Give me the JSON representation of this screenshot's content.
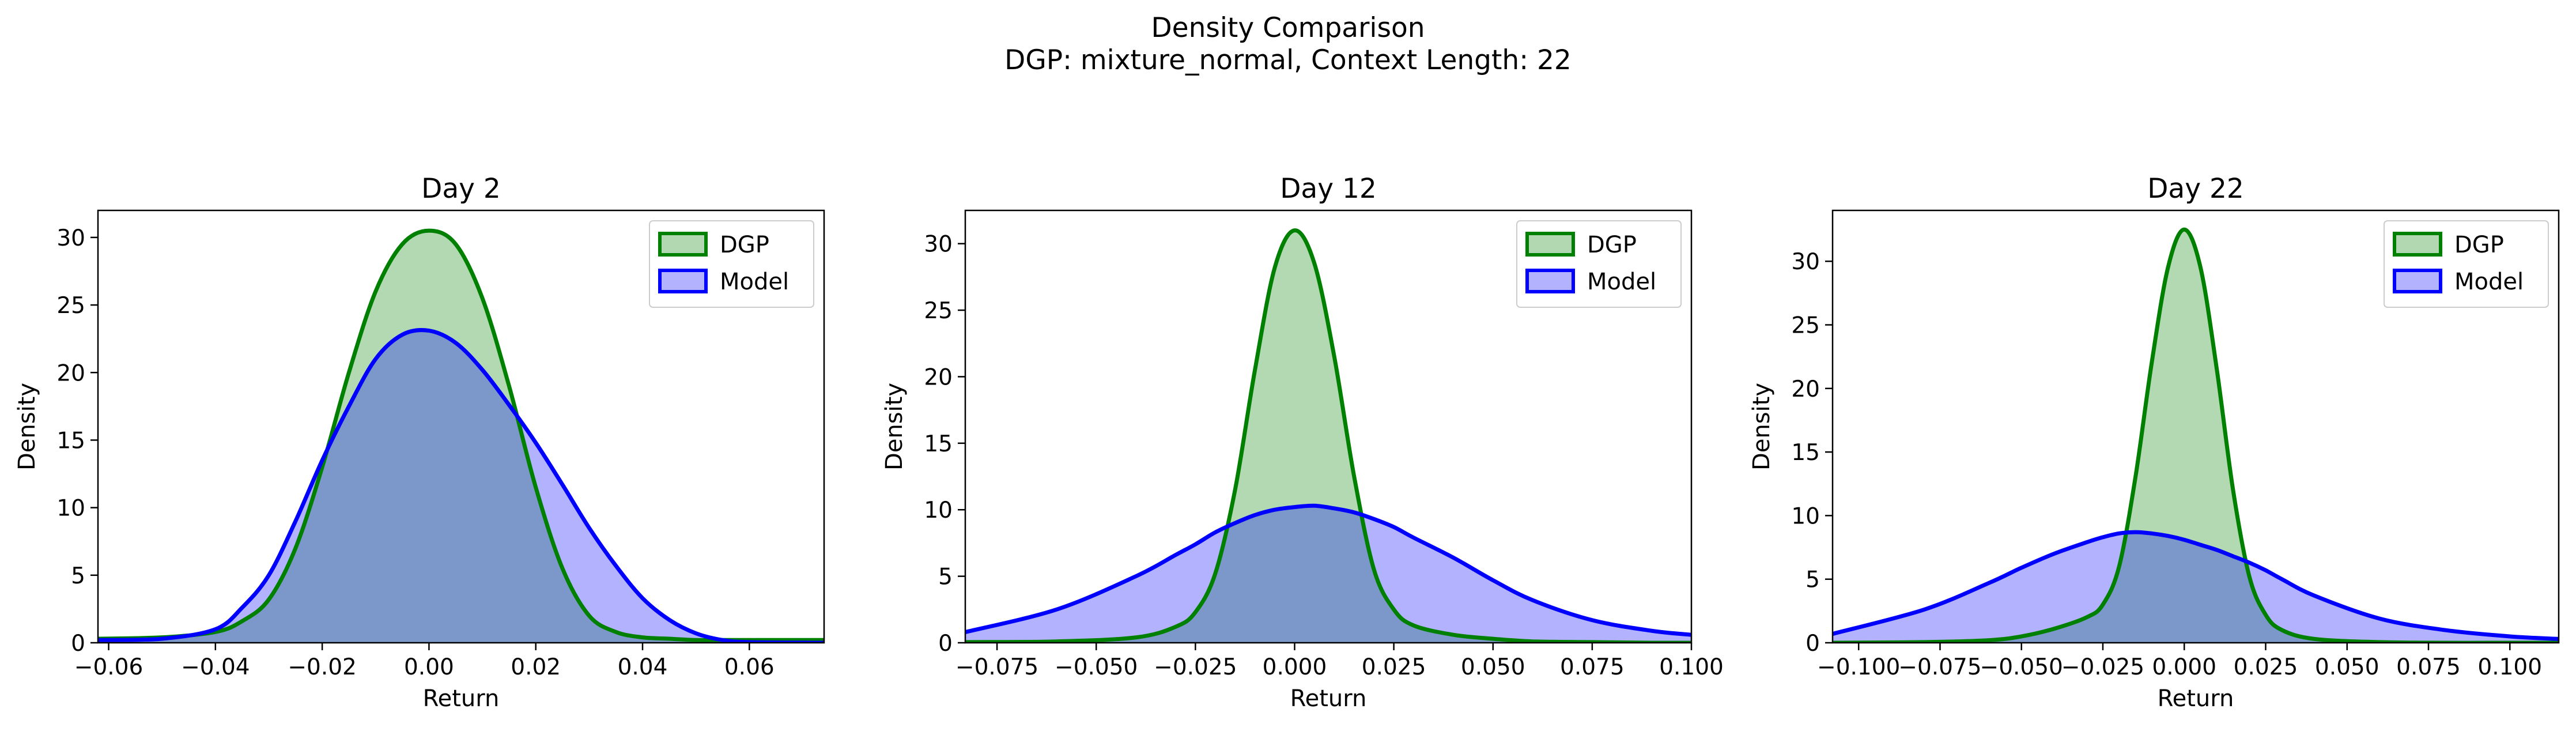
{
  "figure": {
    "title_line1": "Density Comparison",
    "title_line2": "DGP: mixture_normal, Context Length: 22"
  },
  "colors": {
    "dgp_line": "#008000",
    "dgp_fill": "#b2d8b2",
    "model_line": "#0000ff",
    "model_fill": "#b2b2ff",
    "overlap_fill": "#7f9cc8",
    "overlap_line": "#005050"
  },
  "legend": {
    "dgp": "DGP",
    "model": "Model",
    "placement": "upper right"
  },
  "chart_data": [
    {
      "type": "area",
      "title": "Day 2",
      "xlabel": "Return",
      "ylabel": "Density",
      "xlim": [
        -0.062,
        0.074
      ],
      "ylim": [
        0,
        32
      ],
      "xticks": [
        -0.06,
        -0.04,
        -0.02,
        0.0,
        0.02,
        0.04,
        0.06
      ],
      "xtick_labels": [
        "−0.06",
        "−0.04",
        "−0.02",
        "0.00",
        "0.02",
        "0.04",
        "0.06"
      ],
      "yticks": [
        0,
        5,
        10,
        15,
        20,
        25,
        30
      ],
      "ytick_labels": [
        "0",
        "5",
        "10",
        "15",
        "20",
        "25",
        "30"
      ],
      "x": [
        -0.062,
        -0.05,
        -0.04,
        -0.035,
        -0.03,
        -0.025,
        -0.02,
        -0.015,
        -0.01,
        -0.005,
        0.0,
        0.005,
        0.01,
        0.015,
        0.02,
        0.025,
        0.03,
        0.035,
        0.04,
        0.045,
        0.05,
        0.055,
        0.06,
        0.074
      ],
      "series": [
        {
          "name": "DGP",
          "values": [
            0.3,
            0.4,
            0.8,
            1.6,
            3.2,
            7.0,
            13.0,
            20.0,
            26.0,
            29.5,
            30.5,
            29.5,
            25.5,
            19.0,
            11.5,
            5.5,
            2.0,
            0.8,
            0.4,
            0.3,
            0.2,
            0.2,
            0.2,
            0.2
          ]
        },
        {
          "name": "Model",
          "values": [
            0.2,
            0.3,
            1.0,
            2.6,
            5.0,
            9.0,
            13.5,
            17.5,
            21.0,
            22.8,
            23.1,
            22.2,
            20.2,
            17.6,
            14.8,
            11.7,
            8.5,
            5.7,
            3.3,
            1.7,
            0.7,
            0.2,
            0.05,
            0.0
          ]
        }
      ]
    },
    {
      "type": "area",
      "title": "Day 12",
      "xlabel": "Return",
      "ylabel": "Density",
      "xlim": [
        -0.083,
        0.1
      ],
      "ylim": [
        0,
        32.5
      ],
      "xticks": [
        -0.075,
        -0.05,
        -0.025,
        0.0,
        0.025,
        0.05,
        0.075,
        0.1
      ],
      "xtick_labels": [
        "−0.075",
        "−0.050",
        "−0.025",
        "0.000",
        "0.025",
        "0.050",
        "0.075",
        "0.100"
      ],
      "yticks": [
        0,
        5,
        10,
        15,
        20,
        25,
        30
      ],
      "ytick_labels": [
        "0",
        "5",
        "10",
        "15",
        "20",
        "25",
        "30"
      ],
      "x": [
        -0.083,
        -0.06,
        -0.04,
        -0.03,
        -0.025,
        -0.02,
        -0.015,
        -0.01,
        -0.005,
        0.0,
        0.005,
        0.01,
        0.015,
        0.02,
        0.025,
        0.03,
        0.04,
        0.05,
        0.06,
        0.075,
        0.09,
        0.1
      ],
      "series": [
        {
          "name": "DGP",
          "values": [
            0.05,
            0.1,
            0.4,
            1.2,
            2.3,
            5.2,
            11.5,
            20.5,
            28.2,
            31.0,
            28.5,
            21.5,
            12.5,
            5.5,
            2.5,
            1.3,
            0.6,
            0.3,
            0.1,
            0.05,
            0.0,
            0.0
          ]
        },
        {
          "name": "Model",
          "values": [
            0.8,
            2.5,
            5.0,
            6.6,
            7.4,
            8.3,
            9.0,
            9.6,
            10.0,
            10.2,
            10.3,
            10.1,
            9.8,
            9.3,
            8.7,
            7.9,
            6.4,
            4.7,
            3.2,
            1.7,
            0.9,
            0.6
          ]
        }
      ]
    },
    {
      "type": "area",
      "title": "Day 22",
      "xlabel": "Return",
      "ylabel": "Density",
      "xlim": [
        -0.108,
        0.115
      ],
      "ylim": [
        0,
        34
      ],
      "xticks": [
        -0.1,
        -0.075,
        -0.05,
        -0.025,
        0.0,
        0.025,
        0.05,
        0.075,
        0.1
      ],
      "xtick_labels": [
        "−0.100",
        "−0.075",
        "−0.050",
        "−0.025",
        "0.000",
        "0.025",
        "0.050",
        "0.075",
        "0.100"
      ],
      "yticks": [
        0,
        5,
        10,
        15,
        20,
        25,
        30
      ],
      "ytick_labels": [
        "0",
        "5",
        "10",
        "15",
        "20",
        "25",
        "30"
      ],
      "x": [
        -0.108,
        -0.08,
        -0.06,
        -0.05,
        -0.04,
        -0.03,
        -0.025,
        -0.02,
        -0.015,
        -0.01,
        -0.005,
        0.0,
        0.005,
        0.01,
        0.015,
        0.02,
        0.025,
        0.03,
        0.04,
        0.06,
        0.08,
        0.1,
        0.115
      ],
      "series": [
        {
          "name": "DGP",
          "values": [
            0.0,
            0.05,
            0.2,
            0.5,
            1.1,
            2.0,
            3.0,
            6.0,
            13.0,
            22.0,
            29.5,
            32.5,
            29.5,
            21.5,
            12.0,
            5.2,
            2.2,
            1.0,
            0.3,
            0.05,
            0.0,
            0.0,
            0.0
          ]
        },
        {
          "name": "Model",
          "values": [
            0.7,
            2.6,
            4.7,
            5.9,
            7.0,
            7.9,
            8.3,
            8.6,
            8.7,
            8.6,
            8.4,
            8.1,
            7.7,
            7.3,
            6.8,
            6.3,
            5.7,
            5.0,
            3.7,
            1.9,
            1.0,
            0.5,
            0.3
          ]
        }
      ]
    }
  ]
}
